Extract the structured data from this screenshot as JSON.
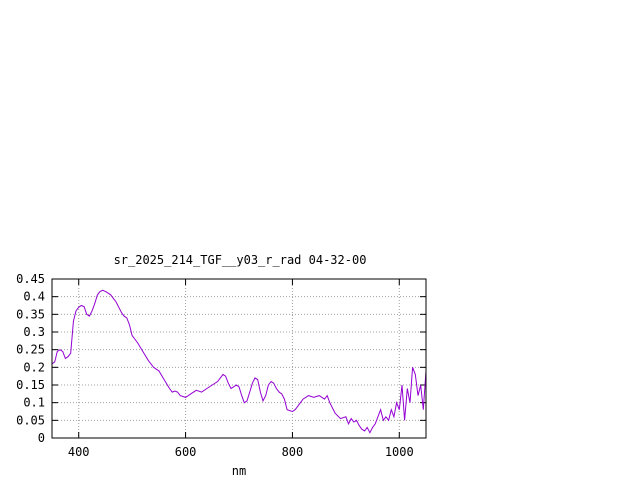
{
  "chart_data": {
    "type": "line",
    "title": "sr_2025_214_TGF__y03_r_rad 04-32-00",
    "xlabel": "nm",
    "ylabel": "",
    "xlim": [
      350,
      1050
    ],
    "ylim": [
      0,
      0.45
    ],
    "x_ticks": [
      400,
      600,
      800,
      1000
    ],
    "y_ticks": [
      0,
      0.05,
      0.1,
      0.15,
      0.2,
      0.25,
      0.3,
      0.35,
      0.4,
      0.45
    ],
    "x_tick_labels": [
      "400",
      "600",
      "800",
      "1000"
    ],
    "y_tick_labels": [
      "0",
      "0.05",
      "0.1",
      "0.15",
      "0.2",
      "0.25",
      "0.3",
      "0.35",
      "0.4",
      "0.45"
    ],
    "grid": true,
    "legend": "none",
    "series": [
      {
        "color": "#9400d3",
        "x": [
          350,
          355,
          360,
          365,
          370,
          375,
          380,
          385,
          390,
          395,
          400,
          405,
          410,
          415,
          420,
          425,
          430,
          435,
          440,
          445,
          450,
          455,
          460,
          465,
          470,
          475,
          480,
          485,
          490,
          495,
          500,
          510,
          520,
          530,
          540,
          550,
          560,
          570,
          575,
          580,
          585,
          590,
          600,
          610,
          620,
          630,
          640,
          650,
          660,
          665,
          670,
          675,
          680,
          685,
          690,
          695,
          700,
          705,
          710,
          715,
          720,
          725,
          730,
          735,
          740,
          745,
          750,
          755,
          760,
          765,
          770,
          775,
          780,
          785,
          790,
          800,
          805,
          810,
          815,
          820,
          830,
          840,
          850,
          860,
          865,
          870,
          875,
          880,
          890,
          900,
          905,
          910,
          915,
          920,
          925,
          930,
          935,
          940,
          945,
          950,
          955,
          960,
          965,
          970,
          975,
          980,
          985,
          990,
          995,
          1000,
          1005,
          1010,
          1015,
          1020,
          1025,
          1030,
          1035,
          1040,
          1045,
          1050
        ],
        "y": [
          0.21,
          0.215,
          0.245,
          0.25,
          0.245,
          0.225,
          0.23,
          0.24,
          0.33,
          0.36,
          0.37,
          0.375,
          0.372,
          0.35,
          0.345,
          0.36,
          0.38,
          0.405,
          0.415,
          0.418,
          0.415,
          0.41,
          0.405,
          0.395,
          0.385,
          0.37,
          0.355,
          0.345,
          0.34,
          0.32,
          0.29,
          0.27,
          0.245,
          0.22,
          0.2,
          0.19,
          0.165,
          0.14,
          0.13,
          0.133,
          0.13,
          0.12,
          0.115,
          0.125,
          0.135,
          0.13,
          0.14,
          0.15,
          0.16,
          0.17,
          0.18,
          0.175,
          0.155,
          0.14,
          0.145,
          0.15,
          0.145,
          0.12,
          0.1,
          0.105,
          0.13,
          0.155,
          0.17,
          0.165,
          0.13,
          0.105,
          0.12,
          0.15,
          0.16,
          0.155,
          0.14,
          0.13,
          0.125,
          0.11,
          0.08,
          0.075,
          0.08,
          0.09,
          0.1,
          0.11,
          0.12,
          0.115,
          0.12,
          0.11,
          0.12,
          0.1,
          0.085,
          0.07,
          0.055,
          0.06,
          0.04,
          0.055,
          0.045,
          0.05,
          0.035,
          0.025,
          0.02,
          0.03,
          0.015,
          0.03,
          0.04,
          0.06,
          0.08,
          0.05,
          0.06,
          0.05,
          0.08,
          0.06,
          0.1,
          0.08,
          0.15,
          0.05,
          0.14,
          0.1,
          0.2,
          0.18,
          0.12,
          0.15,
          0.08,
          0.19
        ]
      }
    ]
  }
}
